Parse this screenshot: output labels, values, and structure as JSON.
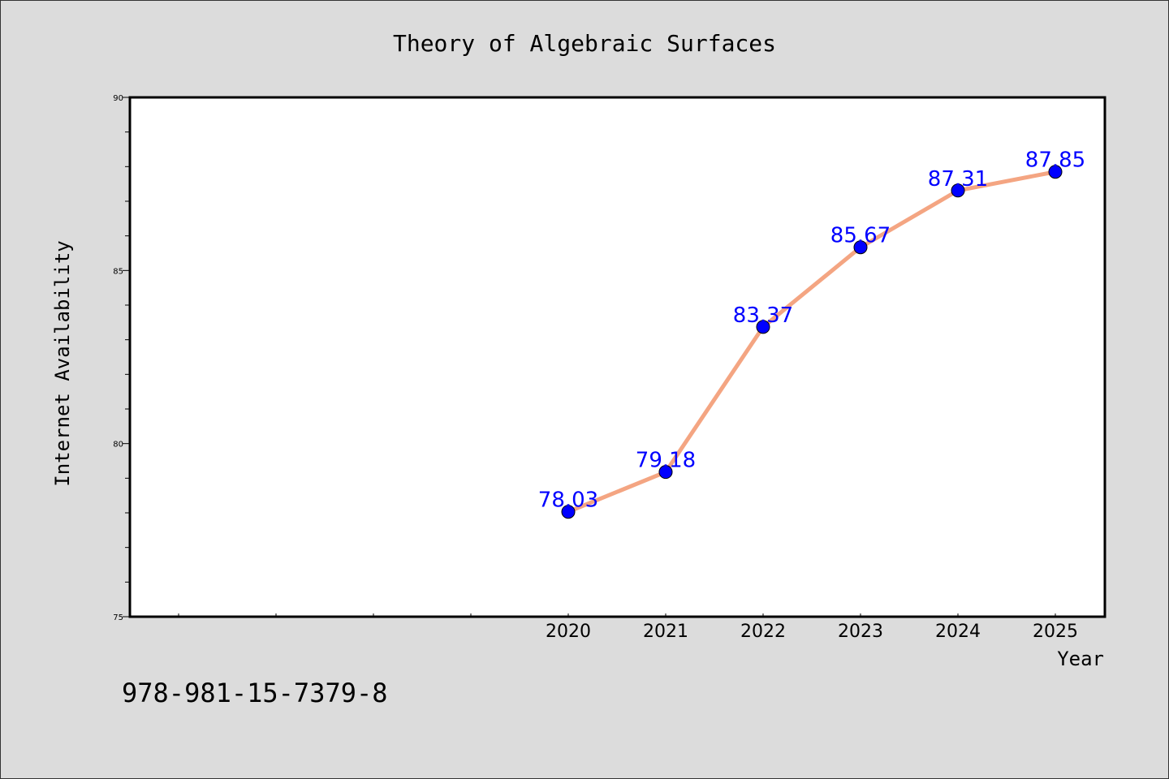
{
  "chart_data": {
    "type": "line",
    "title": "Theory of Algebraic Surfaces",
    "xlabel": "Year",
    "ylabel": "Internet Availability",
    "x": [
      "2020",
      "2021",
      "2022",
      "2023",
      "2024",
      "2025"
    ],
    "values": [
      78.03,
      79.18,
      83.37,
      85.67,
      87.31,
      87.85
    ],
    "value_labels": [
      "78.03",
      "79.18",
      "83.37",
      "85.67",
      "87.31",
      "87.85"
    ],
    "ylim": [
      75,
      90
    ],
    "yticks": [
      "75",
      "80",
      "85",
      "90"
    ],
    "grid": false,
    "legend": "none",
    "line_color": "#f4a582",
    "marker_color": "#0000ff",
    "label_color": "#0000ff"
  },
  "footer": {
    "isbn": "978-981-15-7379-8"
  }
}
